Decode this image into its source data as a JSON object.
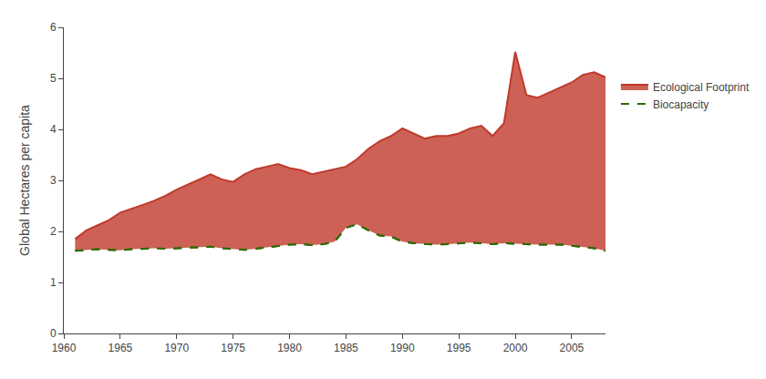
{
  "chart_data": {
    "type": "line",
    "ylabel": "Global Hectares per capita",
    "x": [
      1961,
      1962,
      1963,
      1964,
      1965,
      1966,
      1967,
      1968,
      1969,
      1970,
      1971,
      1972,
      1973,
      1974,
      1975,
      1976,
      1977,
      1978,
      1979,
      1980,
      1981,
      1982,
      1983,
      1984,
      1985,
      1986,
      1987,
      1988,
      1989,
      1990,
      1991,
      1992,
      1993,
      1994,
      1995,
      1996,
      1997,
      1998,
      1999,
      2000,
      2001,
      2002,
      2003,
      2004,
      2005,
      2006,
      2007,
      2008
    ],
    "series": [
      {
        "name": "Biocapacity",
        "color": "#2d6a04",
        "line_style": "dashed",
        "values": [
          1.62,
          1.64,
          1.65,
          1.64,
          1.63,
          1.65,
          1.66,
          1.67,
          1.66,
          1.67,
          1.68,
          1.69,
          1.7,
          1.67,
          1.65,
          1.64,
          1.66,
          1.69,
          1.72,
          1.74,
          1.75,
          1.73,
          1.75,
          1.8,
          2.07,
          2.14,
          2.02,
          1.92,
          1.9,
          1.8,
          1.77,
          1.76,
          1.74,
          1.75,
          1.77,
          1.78,
          1.77,
          1.75,
          1.77,
          1.76,
          1.74,
          1.74,
          1.74,
          1.74,
          1.72,
          1.69,
          1.67,
          1.62
        ]
      },
      {
        "name": "Ecological Footprint",
        "color": "#c0392b",
        "line_style": "solid",
        "type": "area",
        "values": [
          1.85,
          2.02,
          2.12,
          2.22,
          2.37,
          2.44,
          2.52,
          2.6,
          2.7,
          2.82,
          2.92,
          3.02,
          3.12,
          3.02,
          2.97,
          3.12,
          3.22,
          3.27,
          3.32,
          3.24,
          3.2,
          3.12,
          3.17,
          3.22,
          3.27,
          3.42,
          3.62,
          3.77,
          3.87,
          4.02,
          3.92,
          3.82,
          3.87,
          3.87,
          3.92,
          4.02,
          4.07,
          3.87,
          4.12,
          5.52,
          4.67,
          4.62,
          4.72,
          4.82,
          4.92,
          5.07,
          5.12,
          5.02
        ]
      }
    ],
    "xlim": [
      1960,
      2008
    ],
    "ylim": [
      0,
      6
    ],
    "xticks": [
      1960,
      1965,
      1970,
      1975,
      1980,
      1985,
      1990,
      1995,
      2000,
      2005
    ],
    "yticks": [
      0,
      1,
      2,
      3,
      4,
      5,
      6
    ],
    "grid": false,
    "legend": "right"
  }
}
